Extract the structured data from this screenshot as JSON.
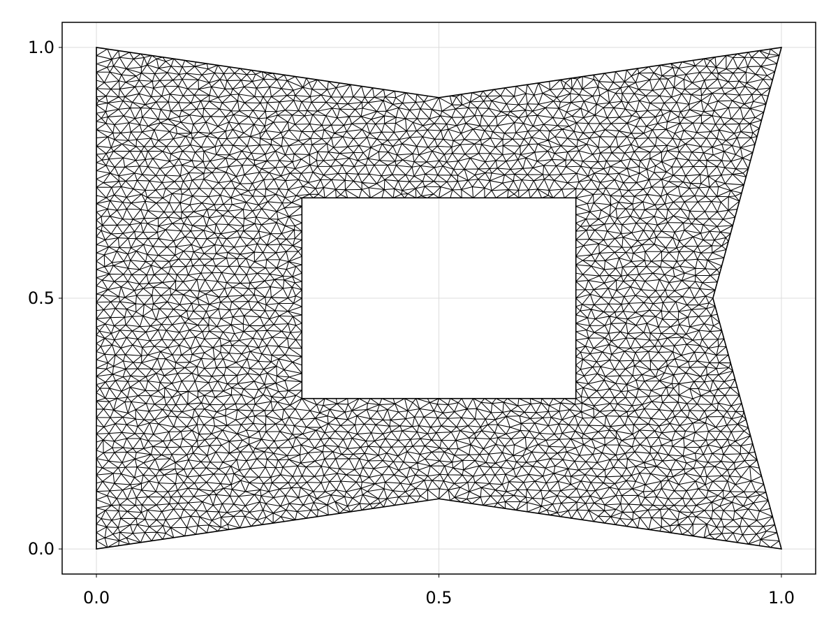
{
  "chart_data": {
    "type": "mesh",
    "title": "",
    "xlabel": "",
    "ylabel": "",
    "xlim": [
      -0.05,
      1.05
    ],
    "ylim": [
      -0.05,
      1.05
    ],
    "grid": true,
    "legend": "none",
    "xticks": [
      {
        "value": 0.0,
        "label": "0.0"
      },
      {
        "value": 0.5,
        "label": "0.5"
      },
      {
        "value": 1.0,
        "label": "1.0"
      }
    ],
    "yticks": [
      {
        "value": 0.0,
        "label": "0.0"
      },
      {
        "value": 0.5,
        "label": "0.5"
      },
      {
        "value": 1.0,
        "label": "1.0"
      }
    ],
    "outer_boundary": [
      [
        0,
        0
      ],
      [
        0.5,
        0.1
      ],
      [
        1,
        0
      ],
      [
        0.9,
        0.5
      ],
      [
        1,
        1
      ],
      [
        0.5,
        0.9
      ],
      [
        0,
        1
      ]
    ],
    "hole_boundary": [
      [
        0.3,
        0.3
      ],
      [
        0.7,
        0.3
      ],
      [
        0.7,
        0.7
      ],
      [
        0.3,
        0.7
      ]
    ],
    "colors": {
      "mesh_edges": "#000000",
      "grid": "#dcdcdc",
      "frame": "#000000",
      "background": "#ffffff"
    }
  }
}
